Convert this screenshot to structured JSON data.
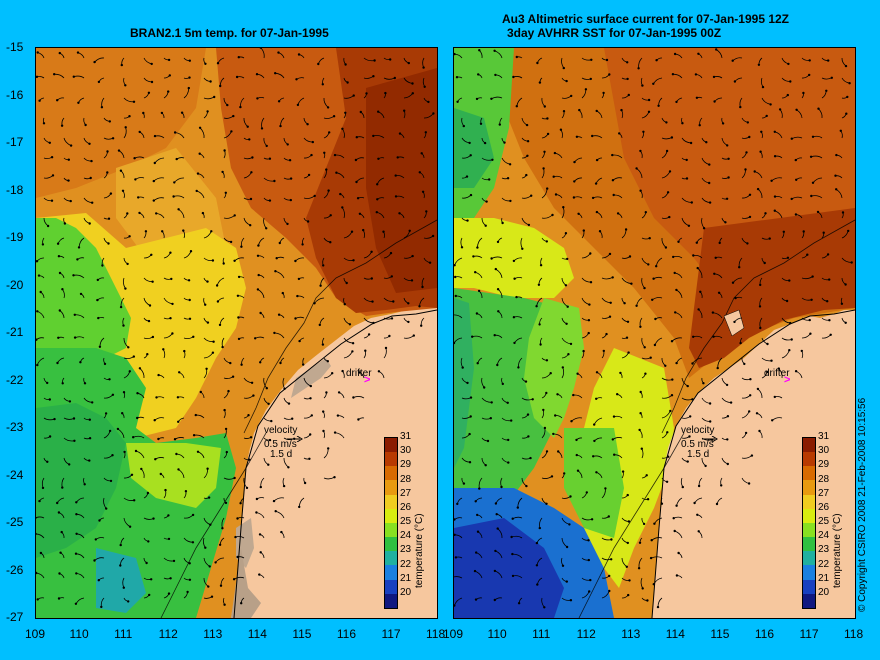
{
  "left_panel": {
    "title": "BRAN2.1 5m temp. for 07-Jan-1995"
  },
  "right_panel": {
    "title_line1": "Au3 Altimetric surface current for 07-Jan-1995 12Z",
    "title_line2": "3day AVHRR SST for 07-Jan-1995 00Z"
  },
  "annotations": {
    "drifter_label": "drifter",
    "drifter_marker": ">",
    "velocity_label": "velocity",
    "velocity_scale": "0.5 m/s",
    "velocity_duration": "1.5 d"
  },
  "colorbar": {
    "title": "temperature (°C)",
    "ticks": [
      "31",
      "30",
      "29",
      "28",
      "27",
      "26",
      "25",
      "24",
      "23",
      "22",
      "21",
      "20"
    ],
    "colors": [
      "#8a1c00",
      "#b83a00",
      "#d86a00",
      "#e89a10",
      "#f0cc20",
      "#d8ec10",
      "#88e020",
      "#30c040",
      "#20b0a0",
      "#1a80e0",
      "#1840c0",
      "#101880"
    ]
  },
  "axes": {
    "y_ticks": [
      "-15",
      "-16",
      "-17",
      "-18",
      "-19",
      "-20",
      "-21",
      "-22",
      "-23",
      "-24",
      "-25",
      "-26",
      "-27"
    ],
    "x_ticks": [
      "109",
      "110",
      "111",
      "112",
      "113",
      "114",
      "115",
      "116",
      "117",
      "118"
    ]
  },
  "colors": {
    "background": "#00bfff",
    "land": "#f6c79e",
    "drifter": "#ff00ff"
  },
  "copyright": "© Copyright CSIRO 2008    21-Feb-2008 10:15:56"
}
